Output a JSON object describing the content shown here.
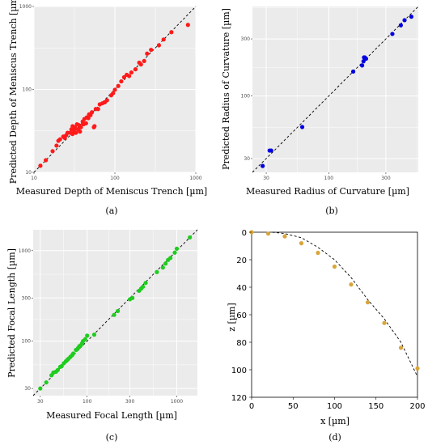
{
  "chart_data": [
    {
      "id": "a",
      "panel_label": "(a)",
      "type": "scatter",
      "xlabel": "Measured Depth of Meniscus Trench [µm]",
      "ylabel": "Predicted Depth of Meniscus Trench [µm]",
      "xscale": "log",
      "yscale": "log",
      "xlim": [
        10,
        1000
      ],
      "ylim": [
        10,
        1000
      ],
      "xticks": [
        "10",
        "100",
        "1000"
      ],
      "yticks": [
        "10",
        "100",
        "1000"
      ],
      "grid": true,
      "point_color": "#ff1a1a",
      "reference_line": "y = x",
      "points": [
        [
          12,
          12
        ],
        [
          14,
          14
        ],
        [
          17,
          18
        ],
        [
          19,
          21
        ],
        [
          20,
          24
        ],
        [
          21,
          25
        ],
        [
          23,
          27
        ],
        [
          24,
          26
        ],
        [
          25,
          28
        ],
        [
          26,
          30
        ],
        [
          28,
          30
        ],
        [
          29,
          33
        ],
        [
          30,
          29
        ],
        [
          30,
          36
        ],
        [
          31,
          32
        ],
        [
          32,
          35
        ],
        [
          33,
          30
        ],
        [
          34,
          38
        ],
        [
          35,
          33
        ],
        [
          36,
          37
        ],
        [
          37,
          31
        ],
        [
          38,
          35
        ],
        [
          40,
          41
        ],
        [
          41,
          38
        ],
        [
          42,
          44
        ],
        [
          44,
          39
        ],
        [
          45,
          46
        ],
        [
          47,
          45
        ],
        [
          48,
          50
        ],
        [
          50,
          49
        ],
        [
          52,
          53
        ],
        [
          55,
          35
        ],
        [
          56,
          36
        ],
        [
          58,
          58
        ],
        [
          62,
          58
        ],
        [
          65,
          66
        ],
        [
          70,
          68
        ],
        [
          75,
          70
        ],
        [
          80,
          74
        ],
        [
          90,
          85
        ],
        [
          95,
          90
        ],
        [
          100,
          99
        ],
        [
          110,
          110
        ],
        [
          120,
          125
        ],
        [
          130,
          140
        ],
        [
          140,
          150
        ],
        [
          150,
          145
        ],
        [
          160,
          160
        ],
        [
          180,
          175
        ],
        [
          200,
          210
        ],
        [
          210,
          200
        ],
        [
          230,
          220
        ],
        [
          250,
          270
        ],
        [
          280,
          300
        ],
        [
          350,
          340
        ],
        [
          400,
          400
        ],
        [
          500,
          490
        ],
        [
          800,
          600
        ]
      ]
    },
    {
      "id": "b",
      "panel_label": "(b)",
      "type": "scatter",
      "xlabel": "Measured Radius of Curvature [µm]",
      "ylabel": "Predicted Radius of Curvature [µm]",
      "xscale": "log",
      "yscale": "log",
      "xlim": [
        23,
        560
      ],
      "ylim": [
        23,
        560
      ],
      "xticks": [
        "30",
        "100",
        "300"
      ],
      "yticks": [
        "30",
        "100",
        "300"
      ],
      "grid": true,
      "point_color": "#0000e0",
      "reference_line": "y = x",
      "points": [
        [
          28,
          26
        ],
        [
          32,
          35
        ],
        [
          33,
          35
        ],
        [
          60,
          55
        ],
        [
          160,
          160
        ],
        [
          190,
          180
        ],
        [
          195,
          195
        ],
        [
          197,
          210
        ],
        [
          200,
          210
        ],
        [
          205,
          205
        ],
        [
          340,
          330
        ],
        [
          400,
          390
        ],
        [
          430,
          430
        ],
        [
          490,
          460
        ]
      ]
    },
    {
      "id": "c",
      "panel_label": "(c)",
      "type": "scatter",
      "xlabel": "Measured Focal Length [µm]",
      "ylabel": "Predicted Focal Length [µm]",
      "xscale": "log",
      "yscale": "log",
      "xlim": [
        25,
        1700
      ],
      "ylim": [
        25,
        1700
      ],
      "xticks": [
        "30",
        "100",
        "300",
        "1000"
      ],
      "yticks": [
        "30",
        "100",
        "300",
        "1000"
      ],
      "grid": true,
      "point_color": "#1fcc1f",
      "reference_line": "y = x",
      "points": [
        [
          30,
          30
        ],
        [
          35,
          35
        ],
        [
          40,
          42
        ],
        [
          42,
          45
        ],
        [
          45,
          46
        ],
        [
          47,
          48
        ],
        [
          50,
          52
        ],
        [
          52,
          53
        ],
        [
          55,
          57
        ],
        [
          58,
          60
        ],
        [
          60,
          62
        ],
        [
          62,
          64
        ],
        [
          65,
          67
        ],
        [
          68,
          70
        ],
        [
          70,
          73
        ],
        [
          75,
          80
        ],
        [
          78,
          82
        ],
        [
          80,
          85
        ],
        [
          82,
          88
        ],
        [
          85,
          90
        ],
        [
          88,
          95
        ],
        [
          90,
          100
        ],
        [
          95,
          105
        ],
        [
          100,
          115
        ],
        [
          120,
          118
        ],
        [
          200,
          195
        ],
        [
          220,
          215
        ],
        [
          300,
          290
        ],
        [
          320,
          300
        ],
        [
          380,
          360
        ],
        [
          400,
          380
        ],
        [
          420,
          400
        ],
        [
          450,
          440
        ],
        [
          600,
          580
        ],
        [
          700,
          650
        ],
        [
          750,
          720
        ],
        [
          800,
          790
        ],
        [
          850,
          830
        ],
        [
          950,
          950
        ],
        [
          1000,
          1050
        ],
        [
          1400,
          1400
        ]
      ]
    },
    {
      "id": "d",
      "panel_label": "(d)",
      "type": "scatter",
      "xlabel": "x [µm]",
      "ylabel": "z [µm]",
      "xlim": [
        0,
        200
      ],
      "ylim": [
        0,
        120
      ],
      "y_inverted": true,
      "xticks": [
        "0",
        "50",
        "100",
        "150",
        "200"
      ],
      "yticks": [
        "0",
        "20",
        "40",
        "60",
        "80",
        "100",
        "120"
      ],
      "grid": false,
      "point_color": "#d9a53a",
      "curve": "dashed fitted profile",
      "points": [
        [
          0,
          0
        ],
        [
          20,
          1
        ],
        [
          40,
          3
        ],
        [
          60,
          8
        ],
        [
          80,
          15
        ],
        [
          100,
          25
        ],
        [
          120,
          38
        ],
        [
          140,
          51
        ],
        [
          160,
          66
        ],
        [
          180,
          84
        ],
        [
          200,
          99
        ]
      ],
      "curve_points": [
        [
          25,
          0
        ],
        [
          40,
          1
        ],
        [
          60,
          4
        ],
        [
          80,
          11
        ],
        [
          100,
          20
        ],
        [
          120,
          33
        ],
        [
          140,
          49
        ],
        [
          160,
          63
        ],
        [
          180,
          80
        ],
        [
          200,
          105
        ]
      ]
    }
  ]
}
